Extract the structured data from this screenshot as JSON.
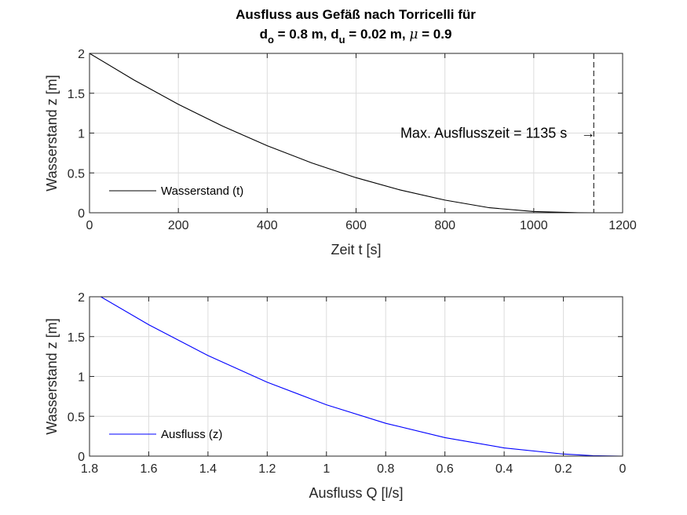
{
  "title": {
    "line1": "Ausfluss aus Gefäß nach Torricelli für",
    "d_o_main": "d",
    "d_o_sub": "o",
    "d_o_val": " = 0.8 m, ",
    "d_u_main": "d",
    "d_u_sub": "u",
    "d_u_val": " = 0.02 m, ",
    "mu_symbol": "μ",
    "mu_val": " = 0.9"
  },
  "chart_data": [
    {
      "type": "line",
      "xlabel": "Zeit t [s]",
      "ylabel": "Wasserstand z [m]",
      "xlim": [
        0,
        1200
      ],
      "ylim": [
        0,
        2
      ],
      "xticks": [
        0,
        200,
        400,
        600,
        800,
        1000,
        1200
      ],
      "yticks": [
        0,
        0.5,
        1,
        1.5,
        2
      ],
      "xtick_labels": [
        "0",
        "200",
        "400",
        "600",
        "800",
        "1000",
        "1200"
      ],
      "ytick_labels": [
        "0",
        "0.5",
        "1",
        "1.5",
        "2"
      ],
      "grid": true,
      "legend_position": "bottom-left",
      "series": [
        {
          "name": "Wasserstand (t)",
          "color": "#000000",
          "x": [
            0,
            100,
            200,
            300,
            400,
            500,
            600,
            700,
            800,
            900,
            1000,
            1100,
            1135
          ],
          "y": [
            2.0,
            1.666,
            1.361,
            1.086,
            0.841,
            0.626,
            0.44,
            0.285,
            0.159,
            0.063,
            0.0153,
            0.0009,
            0.0
          ]
        }
      ],
      "vline": {
        "x": 1135,
        "style": "dashed",
        "color": "#000000"
      },
      "annotation": {
        "text": "Max. Ausflusszeit = 1135 s",
        "arrow": "→",
        "x": 1135,
        "y": 1
      }
    },
    {
      "type": "line",
      "xlabel": "Ausfluss Q [l/s]",
      "ylabel": "Wasserstand z [m]",
      "xlim": [
        1.8,
        0
      ],
      "x_reversed": true,
      "ylim": [
        0,
        2
      ],
      "xticks": [
        1.8,
        1.6,
        1.4,
        1.2,
        1.0,
        0.8,
        0.6,
        0.4,
        0.2,
        0
      ],
      "yticks": [
        0,
        0.5,
        1,
        1.5,
        2
      ],
      "xtick_labels": [
        "1.8",
        "1.6",
        "1.4",
        "1.2",
        "1",
        "0.8",
        "0.6",
        "0.4",
        "0.2",
        "0"
      ],
      "ytick_labels": [
        "0",
        "0.5",
        "1",
        "1.5",
        "2"
      ],
      "grid": true,
      "legend_position": "bottom-left",
      "series": [
        {
          "name": "Ausfluss (z)",
          "color": "#0000ff",
          "x": [
            1.762,
            1.6,
            1.4,
            1.2,
            1.0,
            0.8,
            0.6,
            0.4,
            0.2,
            0.1,
            0.0
          ],
          "y": [
            2.0,
            1.649,
            1.262,
            0.927,
            0.644,
            0.412,
            0.232,
            0.103,
            0.026,
            0.006,
            0.0
          ]
        }
      ]
    }
  ]
}
